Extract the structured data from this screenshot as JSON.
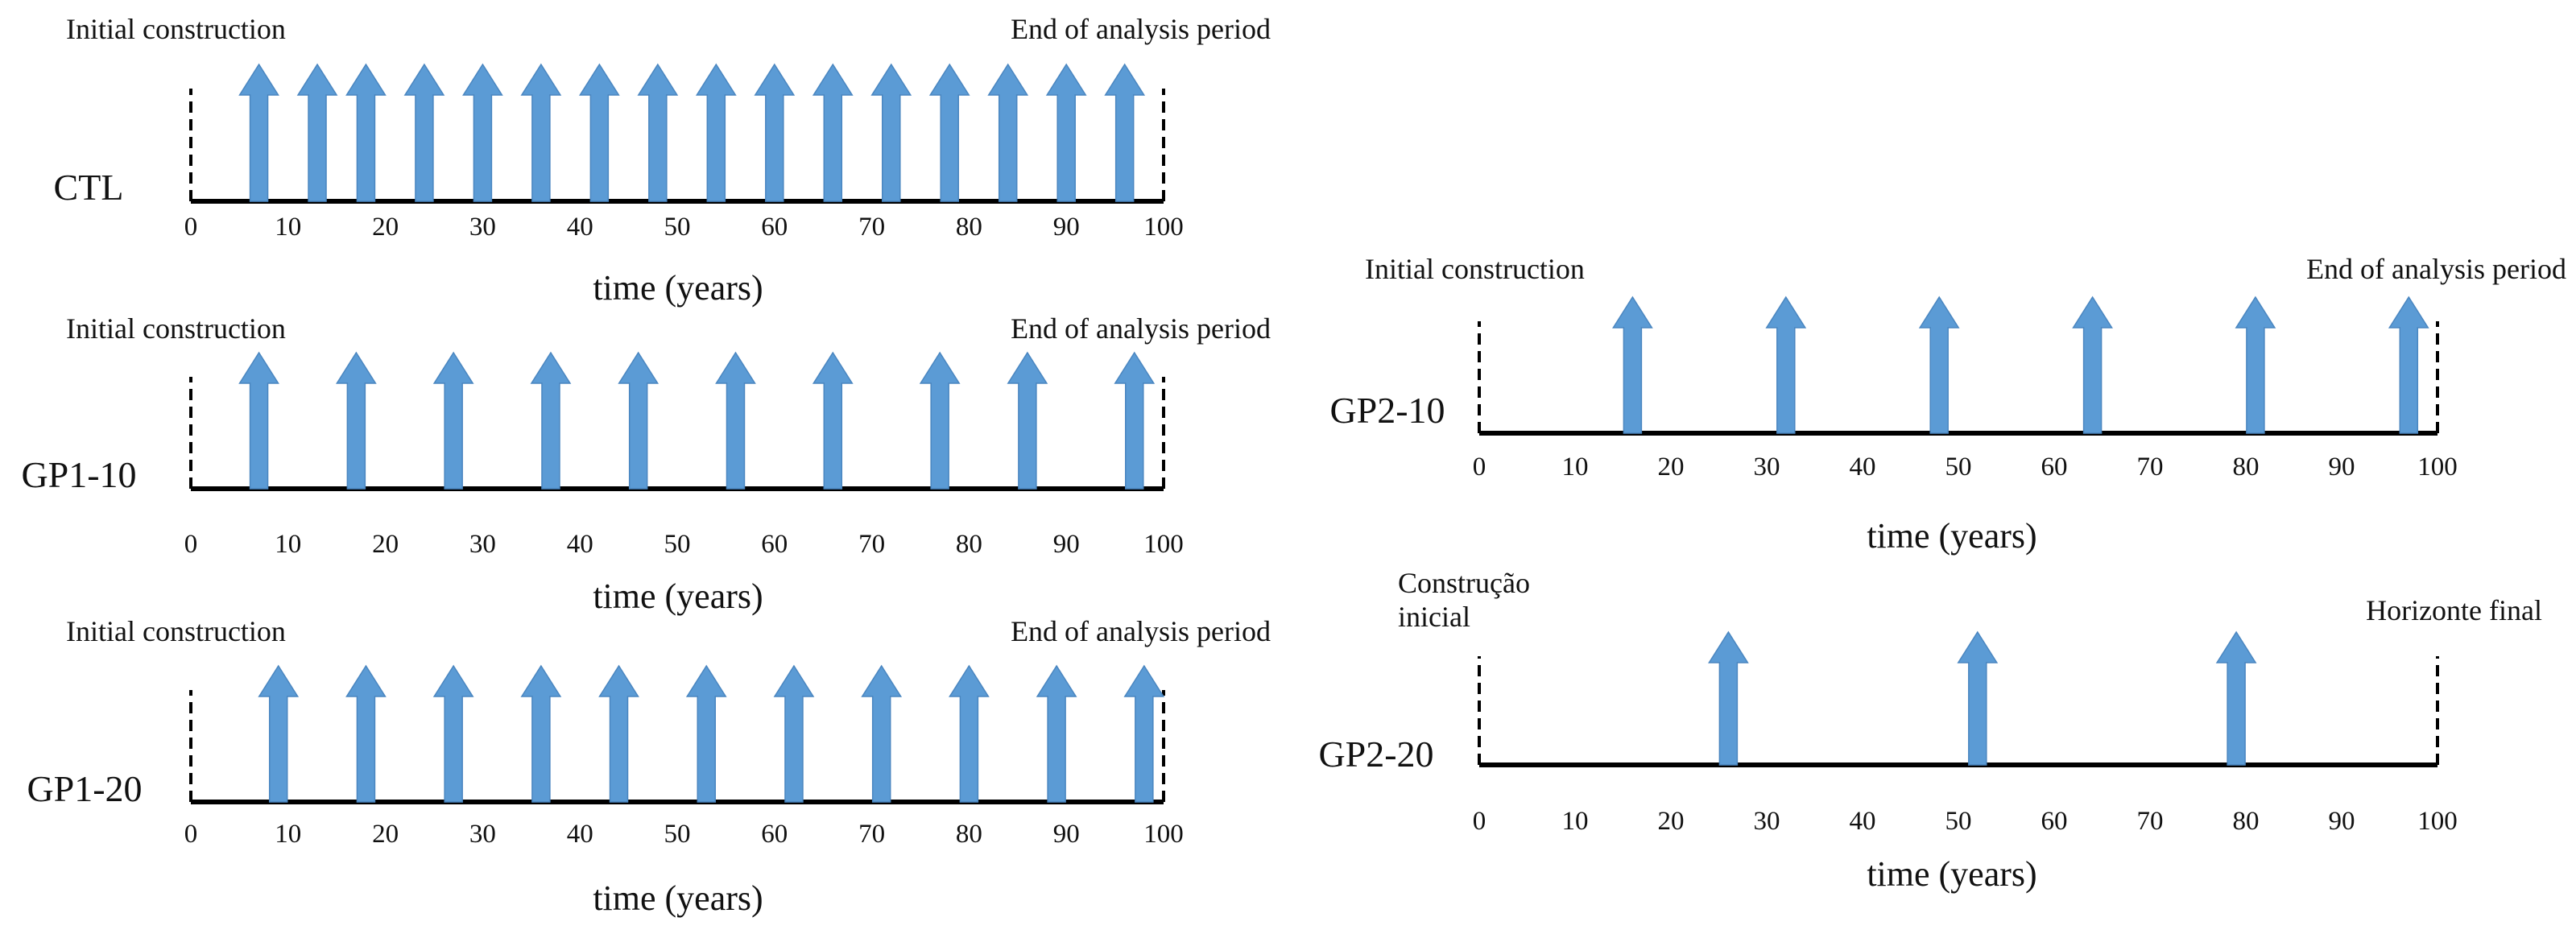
{
  "colors": {
    "arrow": "#5b9bd5",
    "line": "#000000",
    "text": "#111111"
  },
  "axis": {
    "min": 0,
    "max": 100,
    "tick_labels": [
      "0",
      "10",
      "20",
      "30",
      "40",
      "50",
      "60",
      "70",
      "80",
      "90",
      "100"
    ]
  },
  "xlabel": "time (years)",
  "timelines": [
    {
      "id": "ctl",
      "name": "CTL",
      "start_label": [
        "Initial construction"
      ],
      "end_label": [
        "End of analysis period"
      ],
      "interventions": [
        7,
        13,
        18,
        24,
        30,
        36,
        42,
        48,
        54,
        60,
        66,
        72,
        78,
        84,
        90,
        96
      ]
    },
    {
      "id": "gp1-10",
      "name": "GP1-10",
      "start_label": [
        "Initial construction"
      ],
      "end_label": [
        "End of analysis period"
      ],
      "interventions": [
        7,
        17,
        27,
        37,
        46,
        56,
        66,
        77,
        86,
        97
      ]
    },
    {
      "id": "gp1-20",
      "name": "GP1-20",
      "start_label": [
        "Initial construction"
      ],
      "end_label": [
        "End of analysis period"
      ],
      "interventions": [
        9,
        18,
        27,
        36,
        44,
        53,
        62,
        71,
        80,
        89,
        98
      ]
    },
    {
      "id": "gp2-10",
      "name": "GP2-10",
      "start_label": [
        "Initial construction"
      ],
      "end_label": [
        "End of analysis period"
      ],
      "interventions": [
        16,
        32,
        48,
        64,
        81,
        97
      ]
    },
    {
      "id": "gp2-20",
      "name": "GP2-20",
      "start_label": [
        "Construção",
        "inicial"
      ],
      "end_label": [
        "Horizonte final"
      ],
      "interventions": [
        26,
        52,
        79
      ]
    }
  ]
}
